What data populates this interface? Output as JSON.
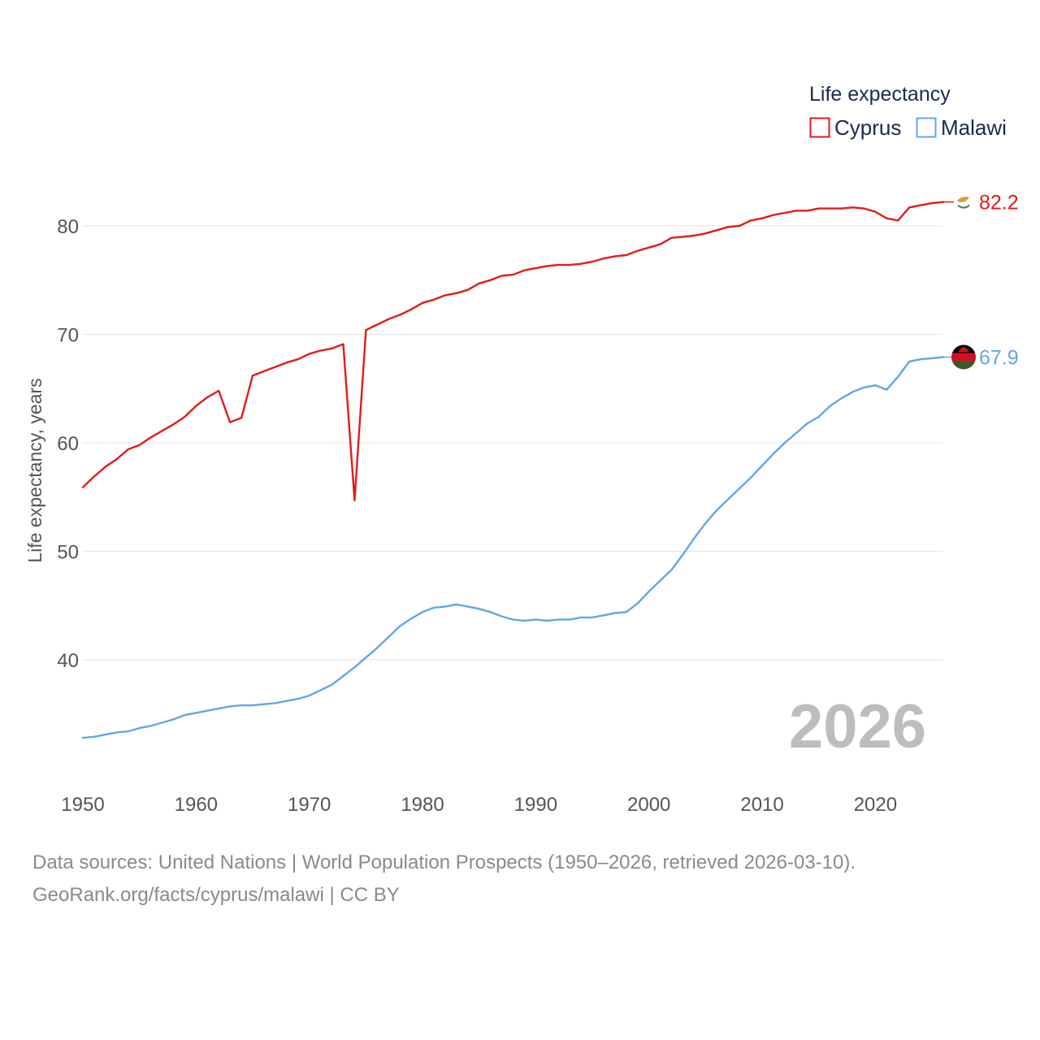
{
  "chart_data": {
    "type": "line",
    "title": "",
    "legend_title": "Life expectancy",
    "ylabel": "Life expectancy, years",
    "xlabel": "",
    "xlim": [
      1950,
      2026
    ],
    "ylim": [
      31,
      86
    ],
    "x_ticks": [
      1950,
      1960,
      1970,
      1980,
      1990,
      2000,
      2010,
      2020
    ],
    "y_ticks": [
      40,
      50,
      60,
      70,
      80
    ],
    "legend_position": "top-right",
    "highlight_year": "2026",
    "x": [
      1950,
      1951,
      1952,
      1953,
      1954,
      1955,
      1956,
      1957,
      1958,
      1959,
      1960,
      1961,
      1962,
      1963,
      1964,
      1965,
      1966,
      1967,
      1968,
      1969,
      1970,
      1971,
      1972,
      1973,
      1974,
      1975,
      1976,
      1977,
      1978,
      1979,
      1980,
      1981,
      1982,
      1983,
      1984,
      1985,
      1986,
      1987,
      1988,
      1989,
      1990,
      1991,
      1992,
      1993,
      1994,
      1995,
      1996,
      1997,
      1998,
      1999,
      2000,
      2001,
      2002,
      2003,
      2004,
      2005,
      2006,
      2007,
      2008,
      2009,
      2010,
      2011,
      2012,
      2013,
      2014,
      2015,
      2016,
      2017,
      2018,
      2019,
      2020,
      2021,
      2022,
      2023,
      2024,
      2025,
      2026
    ],
    "series": [
      {
        "name": "Cyprus",
        "color": "#e31a1c",
        "end_label": "82.2",
        "values": [
          55.9,
          56.9,
          57.8,
          58.5,
          59.4,
          59.8,
          60.5,
          61.1,
          61.7,
          62.4,
          63.4,
          64.2,
          64.8,
          61.9,
          62.3,
          66.2,
          66.6,
          67.0,
          67.4,
          67.7,
          68.2,
          68.5,
          68.7,
          69.1,
          54.7,
          70.4,
          70.9,
          71.4,
          71.8,
          72.3,
          72.9,
          73.2,
          73.6,
          73.8,
          74.1,
          74.7,
          75.0,
          75.4,
          75.5,
          75.9,
          76.1,
          76.3,
          76.4,
          76.4,
          76.5,
          76.7,
          77.0,
          77.2,
          77.3,
          77.7,
          78.0,
          78.3,
          78.9,
          79.0,
          79.1,
          79.3,
          79.6,
          79.9,
          80.0,
          80.5,
          80.7,
          81.0,
          81.2,
          81.4,
          81.4,
          81.6,
          81.6,
          81.6,
          81.7,
          81.6,
          81.3,
          80.7,
          80.5,
          81.7,
          81.9,
          82.1,
          82.2
        ]
      },
      {
        "name": "Malawi",
        "color": "#64a5e6",
        "end_label": "67.9",
        "values": [
          32.8,
          32.9,
          33.1,
          33.3,
          33.4,
          33.7,
          33.9,
          34.2,
          34.5,
          34.9,
          35.1,
          35.3,
          35.5,
          35.7,
          35.8,
          35.8,
          35.9,
          36.0,
          36.2,
          36.4,
          36.7,
          37.2,
          37.7,
          38.5,
          39.3,
          40.2,
          41.1,
          42.1,
          43.1,
          43.8,
          44.4,
          44.8,
          44.9,
          45.1,
          44.9,
          44.7,
          44.4,
          44.0,
          43.7,
          43.6,
          43.7,
          43.6,
          43.7,
          43.7,
          43.9,
          43.9,
          44.1,
          44.3,
          44.4,
          45.2,
          46.3,
          47.3,
          48.3,
          49.7,
          51.2,
          52.6,
          53.8,
          54.8,
          55.8,
          56.8,
          57.9,
          59.0,
          60.0,
          60.9,
          61.8,
          62.4,
          63.4,
          64.1,
          64.7,
          65.1,
          65.3,
          64.9,
          66.1,
          67.5,
          67.7,
          67.8,
          67.9
        ]
      }
    ]
  },
  "footer": {
    "sources": "Data sources: United Nations | World Population Prospects (1950–2026, retrieved 2026-03-10).",
    "credit": "GeoRank.org/facts/cyprus/malawi | CC BY"
  }
}
